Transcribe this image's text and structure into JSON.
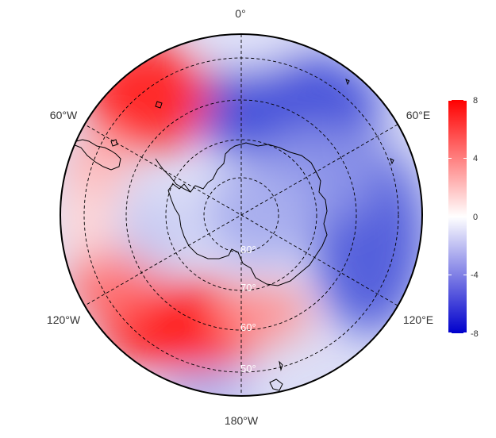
{
  "map": {
    "projection": "south-polar-stereographic",
    "longitude_labels": {
      "lon_0": "0°",
      "lon_60e": "60°E",
      "lon_120e": "120°E",
      "lon_180": "180°W",
      "lon_120w": "120°W",
      "lon_60w": "60°W"
    },
    "latitude_labels": {
      "lat_80": "80°",
      "lat_70": "70°",
      "lat_60": "60°",
      "lat_50": "50°"
    },
    "colorbar": {
      "ticks": [
        "8",
        "4",
        "0",
        "-4",
        "-8"
      ],
      "range": [
        -8,
        8
      ],
      "colors": {
        "high": "#ff0000",
        "mid": "#ffffff",
        "low": "#0000cc"
      }
    },
    "anomaly_field_colors": {
      "strong_positive": "#ff1010",
      "positive": "#ff7a7a",
      "weak_positive": "#ffd0d0",
      "weak_negative": "#c8ccf2",
      "negative": "#8890e6",
      "strong_negative": "#4450d8"
    },
    "graticule": "dashed",
    "coastline_color": "#000000"
  }
}
